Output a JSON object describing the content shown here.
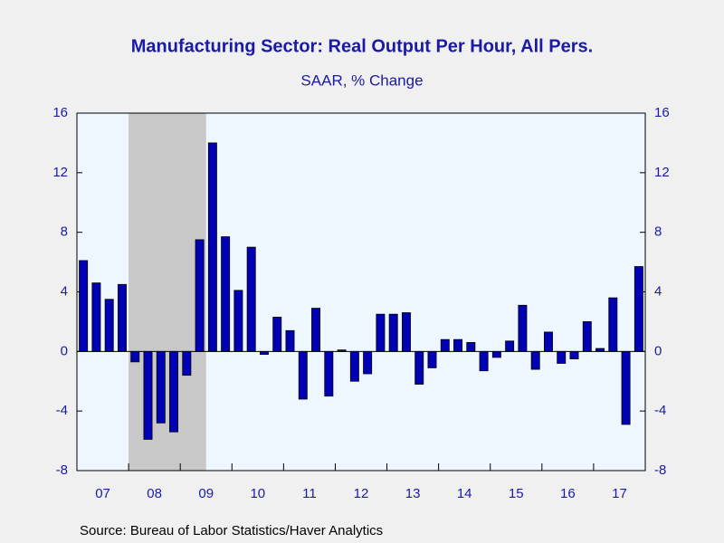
{
  "chart_data": {
    "type": "bar",
    "title": "Manufacturing Sector: Real Output Per Hour, All Pers.",
    "subtitle": "SAAR, % Change",
    "source": "Source:  Bureau of Labor Statistics/Haver Analytics",
    "categories": [
      "07",
      null,
      null,
      null,
      "08",
      null,
      null,
      null,
      "09",
      null,
      null,
      null,
      "10",
      null,
      null,
      null,
      "11",
      null,
      null,
      null,
      "12",
      null,
      null,
      null,
      "13",
      null,
      null,
      null,
      "14",
      null,
      null,
      null,
      "15",
      null,
      null,
      null,
      "16",
      null,
      null,
      null,
      "17",
      null,
      null,
      null
    ],
    "values": [
      6.1,
      4.6,
      3.5,
      4.5,
      -0.7,
      -5.9,
      -4.8,
      -5.4,
      -1.6,
      7.5,
      14.0,
      7.7,
      4.1,
      7.0,
      -0.2,
      2.3,
      1.4,
      -3.2,
      2.9,
      -3.0,
      0.1,
      -2.0,
      -1.5,
      2.5,
      2.5,
      2.6,
      -2.2,
      -1.1,
      0.8,
      0.8,
      0.6,
      -1.3,
      -0.4,
      0.7,
      3.1,
      -1.2,
      1.3,
      -0.8,
      -0.5,
      2.0,
      0.2,
      3.6,
      -4.9,
      5.7
    ],
    "color": "#0000b4",
    "recessions": [
      [
        4,
        9
      ]
    ],
    "ylim": [
      -8,
      16
    ],
    "yticks": [
      -8,
      -4,
      0,
      4,
      8,
      12,
      16
    ],
    "y2lim": [
      -8,
      16
    ],
    "y2ticks": [
      -8,
      -4,
      0,
      4,
      8,
      12,
      16
    ]
  }
}
